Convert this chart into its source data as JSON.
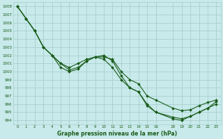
{
  "title": "Graphe pression niveau de la mer (hPa)",
  "bg_color": "#c8eaea",
  "grid_color": "#a8cece",
  "line_color": "#1a5c1a",
  "ylim": [
    993.5,
    1008.5
  ],
  "xlim": [
    -0.5,
    23.5
  ],
  "yticks": [
    994,
    995,
    996,
    997,
    998,
    999,
    1000,
    1001,
    1002,
    1003,
    1004,
    1005,
    1006,
    1007,
    1008
  ],
  "xtick_positions": [
    0,
    1,
    2,
    3,
    4,
    5,
    6,
    7,
    8,
    9,
    10,
    11,
    12,
    13,
    14,
    15,
    16,
    18,
    19,
    20,
    21,
    22,
    23
  ],
  "xtick_labels": [
    "0",
    "1",
    "2",
    "3",
    "4",
    "5",
    "6",
    "7",
    "8",
    "9",
    "10",
    "11",
    "12",
    "13",
    "14",
    "15",
    "16",
    "18",
    "19",
    "20",
    "21",
    "22",
    "23"
  ],
  "series": [
    {
      "x": [
        0,
        1,
        2,
        3,
        4,
        5,
        6,
        7,
        8,
        9,
        10,
        11,
        12,
        13,
        14,
        15,
        16,
        18,
        19,
        20,
        21,
        22,
        23
      ],
      "y": [
        1008,
        1006.5,
        1005,
        1003,
        1002,
        1001,
        1000.5,
        1001,
        1001.5,
        1001.8,
        1001.8,
        1001.5,
        1000,
        999,
        998.5,
        997,
        996.5,
        995.5,
        995.2,
        995.3,
        995.8,
        996.2,
        996.5
      ]
    },
    {
      "x": [
        0,
        1,
        2,
        3,
        4,
        5,
        6,
        7,
        8,
        9,
        10,
        11,
        12,
        13,
        14,
        15,
        16,
        18,
        19,
        20,
        21,
        22,
        23
      ],
      "y": [
        1008,
        1006.5,
        1005,
        1003,
        1002,
        1000.5,
        1000,
        1000.3,
        1001.3,
        1001.8,
        1001.5,
        1000.5,
        999,
        998,
        997.5,
        995.8,
        995,
        994.4,
        994.2,
        994.5,
        995,
        995.5,
        996
      ]
    },
    {
      "x": [
        0,
        1,
        2,
        3,
        4,
        5,
        6,
        7,
        8,
        9,
        10,
        11,
        12,
        13,
        14,
        15,
        16,
        18,
        19,
        20,
        21,
        22,
        23
      ],
      "y": [
        1008,
        1006.5,
        1005,
        1003,
        1002,
        1001,
        1000.2,
        1000.5,
        1001.3,
        1001.8,
        1002,
        1001.3,
        999.5,
        998,
        997.5,
        996,
        995,
        994.2,
        994.0,
        994.5,
        995,
        995.5,
        996.3
      ]
    }
  ]
}
